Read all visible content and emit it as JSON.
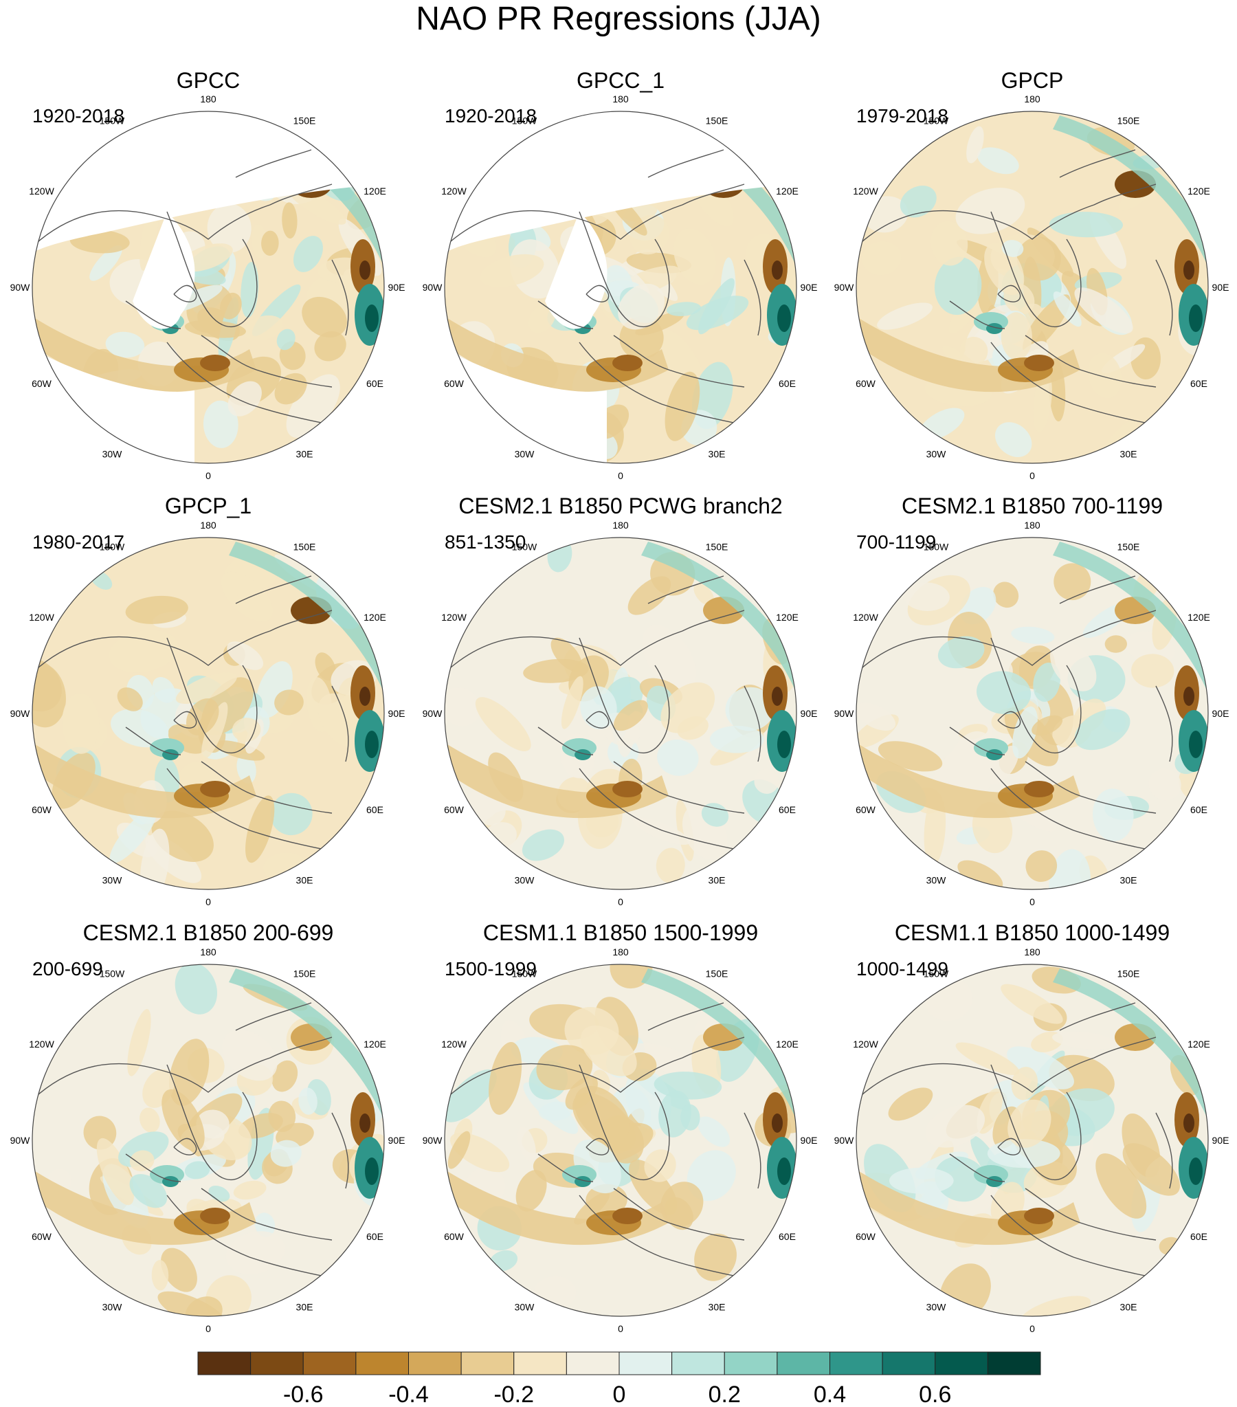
{
  "title": "NAO PR Regressions (JJA)",
  "panels": [
    {
      "title": "GPCC",
      "period": "1920-2018",
      "variant": "obs_gpcc"
    },
    {
      "title": "GPCC_1",
      "period": "1920-2018",
      "variant": "obs_gpcc"
    },
    {
      "title": "GPCP",
      "period": "1979-2018",
      "variant": "obs_gpcp"
    },
    {
      "title": "GPCP_1",
      "period": "1980-2017",
      "variant": "obs_gpcp"
    },
    {
      "title": "CESM2.1 B1850 PCWG branch2",
      "period": "851-1350",
      "variant": "model"
    },
    {
      "title": "CESM2.1 B1850 700-1199",
      "period": "700-1199",
      "variant": "model"
    },
    {
      "title": "CESM2.1 B1850 200-699",
      "period": "200-699",
      "variant": "model"
    },
    {
      "title": "CESM1.1 B1850 1500-1999",
      "period": "1500-1999",
      "variant": "model"
    },
    {
      "title": "CESM1.1 B1850 1000-1499",
      "period": "1000-1499",
      "variant": "model"
    }
  ],
  "longitude_labels": [
    "180",
    "150E",
    "120E",
    "90E",
    "60E",
    "30E",
    "0",
    "30W",
    "60W",
    "90W",
    "120W",
    "150W"
  ],
  "colorbar": {
    "colors": [
      "#5a3110",
      "#7c4a14",
      "#9e6420",
      "#bd852e",
      "#d4a85a",
      "#e8cc92",
      "#f5e6c4",
      "#f3efe2",
      "#e2f1ee",
      "#bfe6df",
      "#93d4c6",
      "#5db6a6",
      "#2f968a",
      "#15776c",
      "#045a4e",
      "#003d33"
    ],
    "tick_labels": [
      "-0.6",
      "-0.4",
      "-0.2",
      "0",
      "0.2",
      "0.4",
      "0.6"
    ]
  }
}
